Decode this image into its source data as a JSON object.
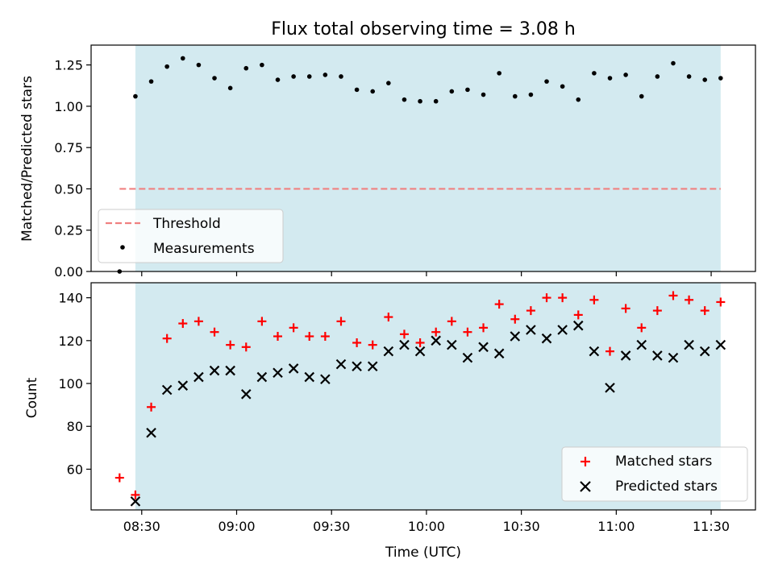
{
  "chart_data": [
    {
      "type": "scatter",
      "title": "Flux total observing time = 3.08 h",
      "ylabel": "Matched/Predicted stars",
      "ylim": [
        0,
        1.37
      ],
      "yticks": [
        "0.00",
        "0.25",
        "0.50",
        "0.75",
        "1.00",
        "1.25"
      ],
      "ytick_values": [
        0,
        0.25,
        0.5,
        0.75,
        1.0,
        1.25
      ],
      "threshold": 0.5,
      "threshold_color": "#f08080",
      "shaded_region": [
        "08:28",
        "11:33"
      ],
      "shade_color": "#d3eaf0",
      "legend_position": "lower left",
      "legend": [
        "Threshold",
        "Measurements"
      ],
      "series": [
        {
          "name": "Measurements",
          "color": "#000000",
          "x": [
            "08:23",
            "08:28",
            "08:33",
            "08:38",
            "08:43",
            "08:48",
            "08:53",
            "08:58",
            "09:03",
            "09:08",
            "09:13",
            "09:18",
            "09:23",
            "09:28",
            "09:33",
            "09:38",
            "09:43",
            "09:48",
            "09:53",
            "09:58",
            "10:03",
            "10:08",
            "10:13",
            "10:18",
            "10:23",
            "10:28",
            "10:33",
            "10:38",
            "10:43",
            "10:48",
            "10:53",
            "10:58",
            "11:03",
            "11:08",
            "11:13",
            "11:18",
            "11:23",
            "11:28",
            "11:33"
          ],
          "y": [
            0.0,
            1.06,
            1.15,
            1.24,
            1.29,
            1.25,
            1.17,
            1.11,
            1.23,
            1.25,
            1.16,
            1.18,
            1.18,
            1.19,
            1.18,
            1.1,
            1.09,
            1.14,
            1.04,
            1.03,
            1.03,
            1.09,
            1.1,
            1.07,
            1.2,
            1.06,
            1.07,
            1.15,
            1.12,
            1.04,
            1.2,
            1.17,
            1.19,
            1.06,
            1.18,
            1.26,
            1.18,
            1.16,
            1.17
          ]
        }
      ]
    },
    {
      "type": "scatter",
      "xlabel": "Time (UTC)",
      "ylabel": "Count",
      "ylim": [
        41,
        147
      ],
      "yticks": [
        "60",
        "80",
        "100",
        "120",
        "140"
      ],
      "ytick_values": [
        60,
        80,
        100,
        120,
        140
      ],
      "xticks": [
        "08:30",
        "09:00",
        "09:30",
        "10:00",
        "10:30",
        "11:00",
        "11:30"
      ],
      "xlim": [
        "08:14",
        "11:44"
      ],
      "shaded_region": [
        "08:28",
        "11:33"
      ],
      "shade_color": "#d3eaf0",
      "legend_position": "lower right",
      "legend": [
        "Matched stars",
        "Predicted stars"
      ],
      "series": [
        {
          "name": "Matched stars",
          "marker": "+",
          "color": "#ff0000",
          "x": [
            "08:23",
            "08:28",
            "08:33",
            "08:38",
            "08:43",
            "08:48",
            "08:53",
            "08:58",
            "09:03",
            "09:08",
            "09:13",
            "09:18",
            "09:23",
            "09:28",
            "09:33",
            "09:38",
            "09:43",
            "09:48",
            "09:53",
            "09:58",
            "10:03",
            "10:08",
            "10:13",
            "10:18",
            "10:23",
            "10:28",
            "10:33",
            "10:38",
            "10:43",
            "10:48",
            "10:53",
            "10:58",
            "11:03",
            "11:08",
            "11:13",
            "11:18",
            "11:23",
            "11:28",
            "11:33"
          ],
          "y": [
            56,
            48,
            89,
            121,
            128,
            129,
            124,
            118,
            117,
            129,
            122,
            126,
            122,
            122,
            129,
            119,
            118,
            131,
            123,
            119,
            124,
            129,
            124,
            126,
            137,
            130,
            134,
            140,
            140,
            132,
            139,
            115,
            135,
            126,
            134,
            141,
            139,
            134,
            138
          ]
        },
        {
          "name": "Predicted stars",
          "marker": "x",
          "color": "#000000",
          "x": [
            "08:28",
            "08:33",
            "08:38",
            "08:43",
            "08:48",
            "08:53",
            "08:58",
            "09:03",
            "09:08",
            "09:13",
            "09:18",
            "09:23",
            "09:28",
            "09:33",
            "09:38",
            "09:43",
            "09:48",
            "09:53",
            "09:58",
            "10:03",
            "10:08",
            "10:13",
            "10:18",
            "10:23",
            "10:28",
            "10:33",
            "10:38",
            "10:43",
            "10:48",
            "10:53",
            "10:58",
            "11:03",
            "11:08",
            "11:13",
            "11:18",
            "11:23",
            "11:28",
            "11:33"
          ],
          "y": [
            45,
            77,
            97,
            99,
            103,
            106,
            106,
            95,
            103,
            105,
            107,
            103,
            102,
            109,
            108,
            108,
            115,
            118,
            115,
            120,
            118,
            112,
            117,
            114,
            122,
            125,
            121,
            125,
            127,
            115,
            98,
            113,
            118,
            113,
            112,
            118,
            115,
            118
          ]
        }
      ]
    }
  ]
}
